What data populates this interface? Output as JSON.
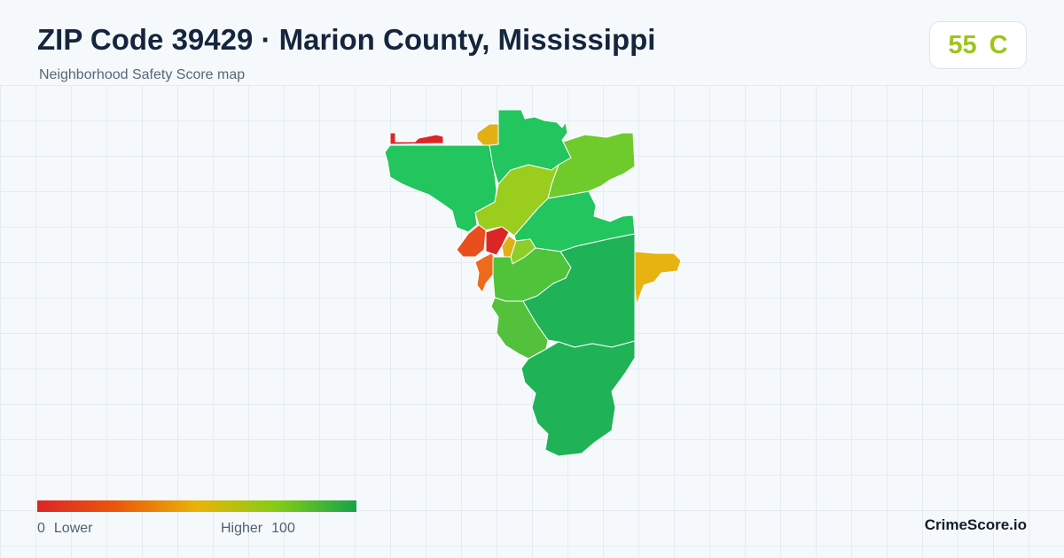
{
  "header": {
    "title": "ZIP Code 39429 · Marion County, Mississippi",
    "subtitle": "Neighborhood Safety Score map"
  },
  "score": {
    "value": "55",
    "grade": "C",
    "color": "#9dc51c"
  },
  "legend": {
    "min": "0",
    "min_label": "Lower",
    "max_label": "Higher",
    "max": "100",
    "colors": [
      "#dc2626",
      "#ea580c",
      "#eab308",
      "#84cc16",
      "#16a34a"
    ]
  },
  "map": {
    "region_colors": {
      "top_strip_red": "#dc2626",
      "top_orange_yellow": "#e2b015",
      "northwest_large": "#22c55e",
      "north_center": "#22c55e",
      "northeast": "#6fcb2c",
      "center_yellowgreen": "#9acd1e",
      "east_band": "#22c55e",
      "west_orange": "#e94e1e",
      "west_red": "#dc2626",
      "small_yellow": "#e2b015",
      "small_lightgreen": "#8dce2a",
      "sw_orange": "#ef6a1a",
      "center_green": "#4fc43a",
      "southwest": "#54c13c",
      "southeast_large": "#1fb257",
      "south_large": "#1fb257",
      "east_yellow": "#e6b311"
    }
  },
  "brand": "CrimeScore.io"
}
